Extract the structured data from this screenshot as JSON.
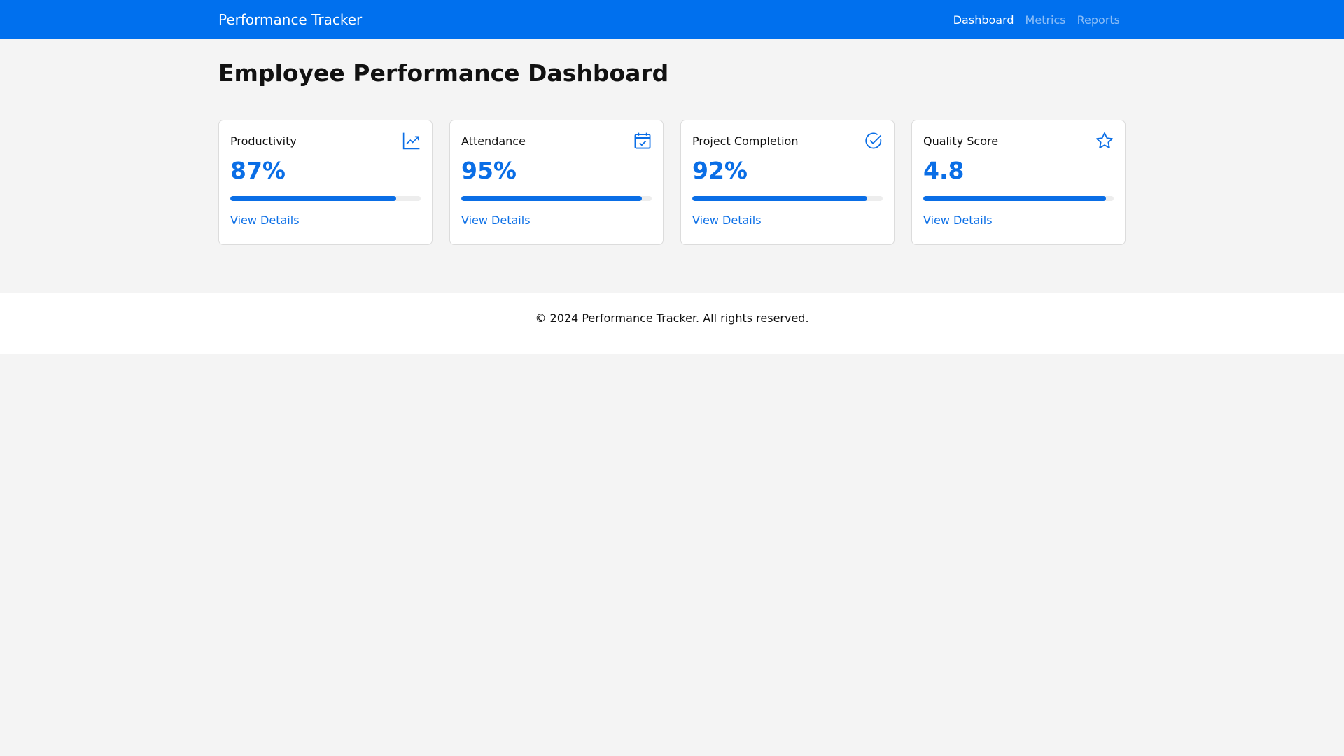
{
  "navbar": {
    "brand": "Performance Tracker",
    "links": [
      {
        "label": "Dashboard",
        "active": true
      },
      {
        "label": "Metrics",
        "active": false
      },
      {
        "label": "Reports",
        "active": false
      }
    ]
  },
  "page": {
    "title": "Employee Performance Dashboard"
  },
  "cards": [
    {
      "title": "Productivity",
      "value": "87%",
      "progress": 0.87,
      "icon": "graph-up-icon",
      "link": "View Details"
    },
    {
      "title": "Attendance",
      "value": "95%",
      "progress": 0.95,
      "icon": "calendar-check-icon",
      "link": "View Details"
    },
    {
      "title": "Project Completion",
      "value": "92%",
      "progress": 0.92,
      "icon": "check-circle-icon",
      "link": "View Details"
    },
    {
      "title": "Quality Score",
      "value": "4.8",
      "progress": 0.96,
      "icon": "star-icon",
      "link": "View Details"
    }
  ],
  "footer": {
    "text": "© 2024 Performance Tracker. All rights reserved."
  },
  "colors": {
    "primary": "#0070ee",
    "accent": "#0a6ee6",
    "background": "#f4f4f4"
  }
}
